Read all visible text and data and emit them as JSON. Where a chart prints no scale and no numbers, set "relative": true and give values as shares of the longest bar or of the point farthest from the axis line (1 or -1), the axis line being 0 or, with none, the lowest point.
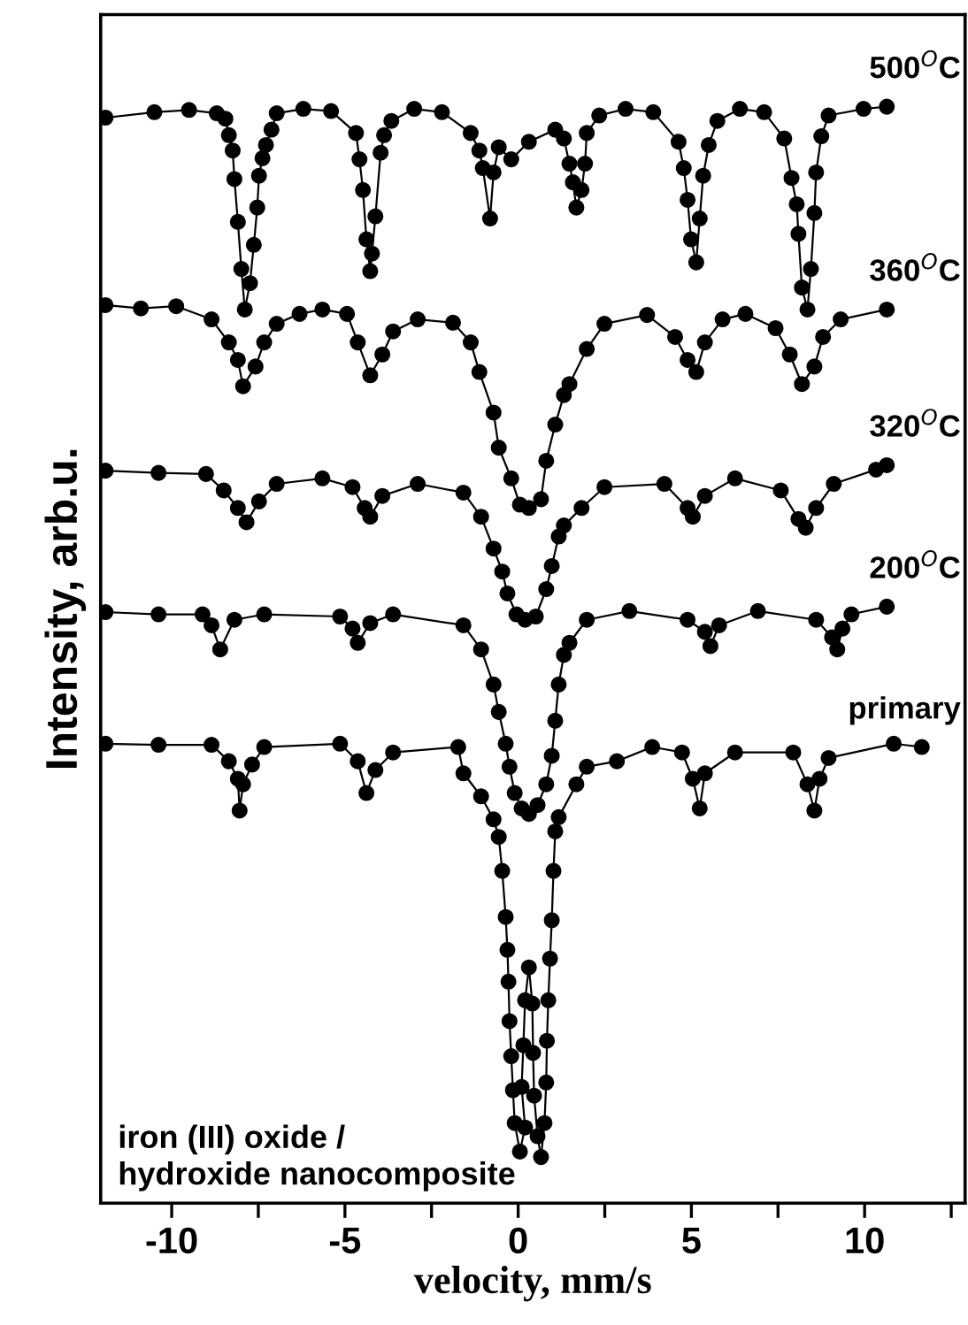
{
  "chart_data": {
    "type": "line",
    "relative": true,
    "marker": "circle",
    "line_style": "solid",
    "grid": false,
    "legend": false,
    "tick_labels": "x",
    "xlabel": "velocity, mm/s",
    "ylabel": "Intensity, arb.u.",
    "xlim": [
      -12.05,
      12.9
    ],
    "xticks": [
      -10,
      {
        "value": -7.5,
        "label": null
      },
      -5,
      {
        "value": -2.5,
        "label": null
      },
      0,
      {
        "value": 2.5,
        "label": null
      },
      5,
      {
        "value": 7.5,
        "label": null
      },
      10,
      {
        "value": 12.5,
        "label": null
      }
    ],
    "annotations": [
      "iron (III) oxide /\nhydroxide nanocomposite"
    ],
    "series": [
      {
        "name": "500$^{O}$C",
        "color": "#000000",
        "x": [
          -11.91,
          -10.5,
          -9.5,
          -8.7,
          -8.45,
          -8.35,
          -8.24,
          -8.19,
          -8.09,
          -7.99,
          -7.89,
          -7.74,
          -7.63,
          -7.53,
          -7.48,
          -7.38,
          -7.28,
          -7.12,
          -6.97,
          -6.2,
          -5.4,
          -4.68,
          -4.58,
          -4.48,
          -4.38,
          -4.27,
          -4.22,
          -4.12,
          -3.97,
          -3.87,
          -3.66,
          -3.0,
          -2.2,
          -1.37,
          -1.12,
          -1.02,
          -0.81,
          -0.71,
          -0.56,
          -0.2,
          0.31,
          1.07,
          1.32,
          1.48,
          1.58,
          1.68,
          1.83,
          1.93,
          1.98,
          2.34,
          3.1,
          3.9,
          4.63,
          4.78,
          4.89,
          4.99,
          5.14,
          5.24,
          5.34,
          5.5,
          5.75,
          6.4,
          7.1,
          7.68,
          7.89,
          8.04,
          8.09,
          8.19,
          8.35,
          8.45,
          8.55,
          8.6,
          8.75,
          8.96,
          9.97,
          10.64
        ],
        "values": [
          0.99,
          0.995,
          0.997,
          0.994,
          0.989,
          0.974,
          0.96,
          0.934,
          0.895,
          0.852,
          0.815,
          0.839,
          0.874,
          0.908,
          0.937,
          0.953,
          0.965,
          0.979,
          0.994,
          0.998,
          0.996,
          0.976,
          0.952,
          0.924,
          0.879,
          0.85,
          0.866,
          0.9,
          0.958,
          0.974,
          0.987,
          0.998,
          0.995,
          0.976,
          0.96,
          0.944,
          0.898,
          0.94,
          0.963,
          0.952,
          0.968,
          0.979,
          0.971,
          0.948,
          0.931,
          0.908,
          0.924,
          0.948,
          0.976,
          0.992,
          0.998,
          0.995,
          0.968,
          0.944,
          0.915,
          0.879,
          0.858,
          0.898,
          0.937,
          0.965,
          0.987,
          0.998,
          0.995,
          0.971,
          0.935,
          0.911,
          0.884,
          0.835,
          0.815,
          0.852,
          0.903,
          0.94,
          0.973,
          0.992,
          0.998,
          1.0
        ]
      },
      {
        "name": "360$^{O}$C",
        "color": "#000000",
        "x": [
          -11.91,
          -10.89,
          -9.87,
          -8.85,
          -8.35,
          -8.09,
          -7.94,
          -7.58,
          -7.33,
          -6.97,
          -6.31,
          -5.65,
          -4.94,
          -4.63,
          -4.27,
          -3.92,
          -3.61,
          -2.9,
          -1.88,
          -1.37,
          -1.12,
          -0.71,
          -0.56,
          -0.2,
          0.05,
          0.31,
          0.66,
          0.81,
          1.07,
          1.32,
          1.48,
          1.98,
          2.49,
          3.72,
          4.53,
          4.89,
          5.14,
          5.39,
          5.9,
          6.56,
          7.43,
          7.84,
          8.19,
          8.55,
          8.8,
          9.31,
          10.64
        ],
        "values": [
          0.819,
          0.816,
          0.818,
          0.806,
          0.785,
          0.769,
          0.745,
          0.763,
          0.785,
          0.802,
          0.811,
          0.815,
          0.811,
          0.785,
          0.755,
          0.774,
          0.795,
          0.806,
          0.803,
          0.785,
          0.758,
          0.721,
          0.689,
          0.661,
          0.637,
          0.634,
          0.642,
          0.677,
          0.71,
          0.737,
          0.747,
          0.779,
          0.802,
          0.81,
          0.79,
          0.769,
          0.758,
          0.785,
          0.806,
          0.811,
          0.798,
          0.774,
          0.747,
          0.763,
          0.79,
          0.806,
          0.815
        ]
      },
      {
        "name": "320$^{O}$C",
        "color": "#000000",
        "x": [
          -11.91,
          -10.38,
          -9.01,
          -8.5,
          -8.09,
          -7.84,
          -7.48,
          -6.97,
          -5.65,
          -4.78,
          -4.43,
          -4.27,
          -3.92,
          -2.9,
          -1.58,
          -1.07,
          -0.71,
          -0.46,
          -0.31,
          -0.05,
          0.2,
          0.51,
          0.81,
          0.97,
          1.17,
          1.32,
          1.83,
          2.49,
          4.22,
          4.89,
          5.04,
          5.39,
          6.26,
          7.58,
          8.09,
          8.3,
          8.6,
          9.11,
          10.33,
          10.64
        ],
        "values": [
          0.668,
          0.666,
          0.665,
          0.65,
          0.634,
          0.621,
          0.64,
          0.656,
          0.661,
          0.653,
          0.634,
          0.626,
          0.645,
          0.656,
          0.648,
          0.626,
          0.597,
          0.576,
          0.556,
          0.537,
          0.532,
          0.535,
          0.56,
          0.581,
          0.608,
          0.618,
          0.634,
          0.653,
          0.656,
          0.634,
          0.626,
          0.645,
          0.661,
          0.65,
          0.624,
          0.616,
          0.634,
          0.656,
          0.669,
          0.673
        ]
      },
      {
        "name": "200$^{O}$C",
        "color": "#000000",
        "x": [
          -11.91,
          -10.38,
          -9.11,
          -8.85,
          -8.6,
          -8.19,
          -7.33,
          -5.14,
          -4.78,
          -4.63,
          -4.27,
          -3.61,
          -1.58,
          -1.07,
          -0.71,
          -0.56,
          -0.36,
          -0.25,
          -0.1,
          0.1,
          0.31,
          0.56,
          0.81,
          0.97,
          1.07,
          1.17,
          1.32,
          1.48,
          1.98,
          3.21,
          4.89,
          5.39,
          5.55,
          5.8,
          6.92,
          8.6,
          9.06,
          9.21,
          9.36,
          9.62,
          10.64
        ],
        "values": [
          0.539,
          0.537,
          0.537,
          0.527,
          0.505,
          0.532,
          0.537,
          0.535,
          0.524,
          0.511,
          0.529,
          0.537,
          0.527,
          0.505,
          0.473,
          0.448,
          0.419,
          0.398,
          0.374,
          0.36,
          0.355,
          0.363,
          0.382,
          0.408,
          0.44,
          0.473,
          0.5,
          0.511,
          0.532,
          0.54,
          0.532,
          0.521,
          0.508,
          0.527,
          0.54,
          0.532,
          0.516,
          0.505,
          0.524,
          0.537,
          0.544
        ]
      },
      {
        "name": "primary",
        "color": "#000000",
        "x": [
          -11.91,
          -10.38,
          -8.85,
          -8.35,
          -8.09,
          -8.04,
          -7.94,
          -7.68,
          -7.33,
          -5.14,
          -4.63,
          -4.38,
          -4.12,
          -3.61,
          -1.73,
          -1.58,
          -1.07,
          -0.71,
          -0.56,
          -0.46,
          -0.36,
          -0.31,
          -0.28,
          -0.25,
          -0.2,
          -0.15,
          -0.1,
          0.05,
          0.2,
          0.1,
          0.15,
          0.2,
          0.31,
          0.41,
          0.43,
          0.46,
          0.56,
          0.66,
          0.76,
          0.81,
          0.83,
          0.87,
          0.92,
          0.97,
          1.02,
          1.07,
          1.17,
          1.68,
          1.98,
          2.85,
          3.87,
          4.73,
          5.04,
          5.24,
          5.39,
          6.26,
          7.94,
          8.35,
          8.55,
          8.7,
          8.96,
          10.84,
          11.65
        ],
        "values": [
          0.419,
          0.418,
          0.418,
          0.403,
          0.387,
          0.358,
          0.382,
          0.4,
          0.416,
          0.419,
          0.403,
          0.374,
          0.395,
          0.411,
          0.416,
          0.392,
          0.371,
          0.35,
          0.334,
          0.303,
          0.261,
          0.231,
          0.202,
          0.166,
          0.134,
          0.103,
          0.073,
          0.047,
          0.069,
          0.106,
          0.144,
          0.185,
          0.215,
          0.182,
          0.137,
          0.098,
          0.061,
          0.042,
          0.073,
          0.11,
          0.148,
          0.185,
          0.223,
          0.258,
          0.303,
          0.339,
          0.352,
          0.382,
          0.398,
          0.403,
          0.416,
          0.411,
          0.387,
          0.36,
          0.392,
          0.411,
          0.411,
          0.382,
          0.358,
          0.387,
          0.406,
          0.419,
          0.416
        ]
      }
    ]
  }
}
